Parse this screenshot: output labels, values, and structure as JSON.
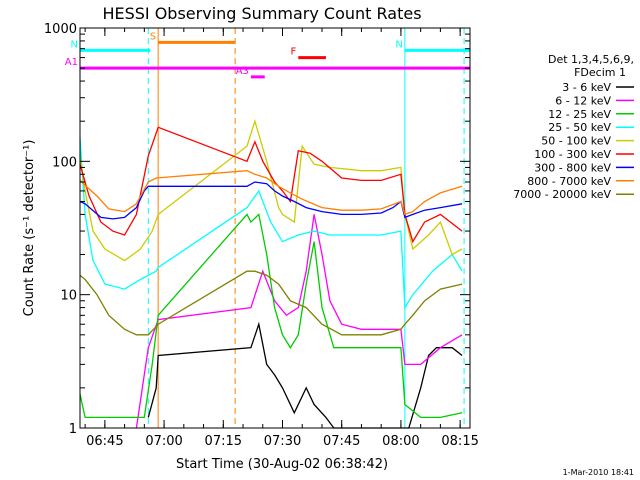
{
  "chart_data": {
    "type": "line",
    "title": "HESSI Observing Summary Count Rates",
    "xlabel": "Start Time (30-Aug-02 06:38:42)",
    "ylabel": "Count Rate (s⁻¹ detector⁻¹)",
    "y_scale": "log",
    "ylim": [
      1,
      1000
    ],
    "xlim": [
      "06:38:42",
      "08:17:30"
    ],
    "x_ticks": [
      "06:45",
      "07:00",
      "07:15",
      "07:30",
      "07:45",
      "08:00",
      "08:15"
    ],
    "y_ticks": [
      "1",
      "10",
      "100",
      "1000"
    ],
    "timestamp": "1-Mar-2010 18:41",
    "legend": {
      "placement": "right",
      "header": [
        "Det 1,3,4,5,6,9,",
        "FDecim 1"
      ]
    },
    "flags": [
      {
        "label": "S",
        "color": "#ff7f00",
        "start": "06:58:30",
        "end": "07:18:00",
        "level": 780
      },
      {
        "label": "N",
        "color": "#00ffff",
        "start": "06:38:42",
        "end": "06:56:30",
        "level": 680
      },
      {
        "label": "N",
        "color": "#00ffff",
        "start": "08:01:00",
        "end": "08:17:30",
        "level": 680
      },
      {
        "label": "A1",
        "color": "#ff00ff",
        "start": "06:38:42",
        "end": "08:17:30",
        "level": 500
      },
      {
        "label": "A3",
        "color": "#ff00ff",
        "start": "07:22:00",
        "end": "07:25:30",
        "level": 430
      },
      {
        "label": "F",
        "color": "#ff0000",
        "start": "07:34:00",
        "end": "07:41:00",
        "level": 600
      }
    ],
    "event_lines": [
      {
        "time": "06:56:00",
        "color": "#00ffff"
      },
      {
        "time": "08:16:00",
        "color": "#00ffff"
      },
      {
        "time": "07:18:00",
        "color": "#ff7f00"
      }
    ],
    "solid_event_lines": [
      {
        "time": "06:58:30",
        "color": "#ff7f00"
      },
      {
        "time": "08:01:00",
        "color": "#00ffff"
      }
    ],
    "series": [
      {
        "name": "3 - 6 keV",
        "color": "#000000",
        "points": [
          [
            "06:56:00",
            1.2
          ],
          [
            "06:58:00",
            2
          ],
          [
            "06:58:30",
            3.5
          ],
          [
            "07:22:00",
            4
          ],
          [
            "07:24:00",
            6
          ],
          [
            "07:26:00",
            3
          ],
          [
            "07:28:00",
            2.5
          ],
          [
            "07:30:00",
            2
          ],
          [
            "07:33:00",
            1.3
          ],
          [
            "07:36:00",
            2
          ],
          [
            "07:38:00",
            1.5
          ],
          [
            "07:41:00",
            1.2
          ],
          [
            "07:43:00",
            1
          ],
          [
            "07:58:00",
            1
          ],
          [
            "08:02:00",
            1
          ],
          [
            "08:05:00",
            2
          ],
          [
            "08:07:00",
            3.5
          ],
          [
            "08:09:00",
            4
          ],
          [
            "08:13:00",
            4
          ],
          [
            "08:15:30",
            3.5
          ]
        ]
      },
      {
        "name": "6 - 12 keV",
        "color": "#ff00ff",
        "points": [
          [
            "06:53:00",
            1
          ],
          [
            "06:56:00",
            4
          ],
          [
            "06:58:30",
            6.5
          ],
          [
            "07:22:00",
            8
          ],
          [
            "07:25:00",
            15
          ],
          [
            "07:28:00",
            9
          ],
          [
            "07:31:00",
            7
          ],
          [
            "07:34:00",
            8
          ],
          [
            "07:36:00",
            15
          ],
          [
            "07:38:00",
            40
          ],
          [
            "07:40:00",
            20
          ],
          [
            "07:42:00",
            9
          ],
          [
            "07:45:00",
            6
          ],
          [
            "07:50:00",
            5.5
          ],
          [
            "07:55:00",
            5.5
          ],
          [
            "08:00:00",
            5.5
          ],
          [
            "08:01:00",
            3
          ],
          [
            "08:02:00",
            3
          ],
          [
            "08:05:00",
            3
          ],
          [
            "08:10:00",
            4
          ],
          [
            "08:15:30",
            5
          ]
        ]
      },
      {
        "name": "12 - 25 keV",
        "color": "#00cc00",
        "points": [
          [
            "06:38:42",
            1.8
          ],
          [
            "06:40:00",
            1.2
          ],
          [
            "06:55:00",
            1.2
          ],
          [
            "06:57:00",
            3
          ],
          [
            "06:58:30",
            7
          ],
          [
            "07:21:00",
            40
          ],
          [
            "07:22:00",
            35
          ],
          [
            "07:24:00",
            40
          ],
          [
            "07:26:00",
            20
          ],
          [
            "07:28:00",
            8
          ],
          [
            "07:30:00",
            5
          ],
          [
            "07:32:00",
            4
          ],
          [
            "07:34:00",
            5
          ],
          [
            "07:36:00",
            12
          ],
          [
            "07:38:00",
            25
          ],
          [
            "07:40:00",
            8
          ],
          [
            "07:43:00",
            4
          ],
          [
            "07:50:00",
            4
          ],
          [
            "08:00:00",
            4
          ],
          [
            "08:01:00",
            1.5
          ],
          [
            "08:05:00",
            1.2
          ],
          [
            "08:10:00",
            1.2
          ],
          [
            "08:15:30",
            1.3
          ]
        ]
      },
      {
        "name": "25 - 50 keV",
        "color": "#00ffff",
        "points": [
          [
            "06:38:42",
            150
          ],
          [
            "06:40:00",
            40
          ],
          [
            "06:42:00",
            18
          ],
          [
            "06:45:00",
            12
          ],
          [
            "06:50:00",
            11
          ],
          [
            "06:54:00",
            13
          ],
          [
            "06:58:00",
            15
          ],
          [
            "06:58:30",
            16
          ],
          [
            "07:21:00",
            45
          ],
          [
            "07:24:00",
            60
          ],
          [
            "07:27:00",
            35
          ],
          [
            "07:30:00",
            25
          ],
          [
            "07:34:00",
            28
          ],
          [
            "07:38:00",
            30
          ],
          [
            "07:42:00",
            28
          ],
          [
            "07:50:00",
            28
          ],
          [
            "07:55:00",
            28
          ],
          [
            "08:00:00",
            30
          ],
          [
            "08:01:00",
            8
          ],
          [
            "08:03:00",
            10
          ],
          [
            "08:08:00",
            15
          ],
          [
            "08:13:00",
            20
          ],
          [
            "08:15:30",
            15
          ]
        ]
      },
      {
        "name": "50 - 100 keV",
        "color": "#cccc00",
        "points": [
          [
            "06:38:42",
            110
          ],
          [
            "06:40:00",
            60
          ],
          [
            "06:42:00",
            30
          ],
          [
            "06:45:00",
            22
          ],
          [
            "06:50:00",
            18
          ],
          [
            "06:54:00",
            22
          ],
          [
            "06:57:00",
            30
          ],
          [
            "06:58:30",
            40
          ],
          [
            "07:21:00",
            130
          ],
          [
            "07:23:00",
            200
          ],
          [
            "07:26:00",
            100
          ],
          [
            "07:29:00",
            45
          ],
          [
            "07:30:00",
            40
          ],
          [
            "07:33:00",
            35
          ],
          [
            "07:35:00",
            130
          ],
          [
            "07:38:00",
            95
          ],
          [
            "07:42:00",
            90
          ],
          [
            "07:50:00",
            85
          ],
          [
            "07:55:00",
            85
          ],
          [
            "08:00:00",
            90
          ],
          [
            "08:01:00",
            40
          ],
          [
            "08:03:00",
            22
          ],
          [
            "08:07:00",
            28
          ],
          [
            "08:10:00",
            35
          ],
          [
            "08:13:00",
            20
          ],
          [
            "08:15:30",
            22
          ]
        ]
      },
      {
        "name": "100 - 300 keV",
        "color": "#ff0000",
        "points": [
          [
            "06:38:42",
            95
          ],
          [
            "06:41:00",
            55
          ],
          [
            "06:44:00",
            35
          ],
          [
            "06:47:00",
            30
          ],
          [
            "06:50:00",
            28
          ],
          [
            "06:53:00",
            40
          ],
          [
            "06:56:00",
            110
          ],
          [
            "06:58:30",
            180
          ],
          [
            "07:21:00",
            100
          ],
          [
            "07:23:00",
            140
          ],
          [
            "07:25:00",
            100
          ],
          [
            "07:28:00",
            70
          ],
          [
            "07:30:00",
            60
          ],
          [
            "07:32:00",
            50
          ],
          [
            "07:34:00",
            120
          ],
          [
            "07:37:00",
            115
          ],
          [
            "07:40:00",
            100
          ],
          [
            "07:45:00",
            75
          ],
          [
            "07:50:00",
            72
          ],
          [
            "07:55:00",
            72
          ],
          [
            "08:00:00",
            80
          ],
          [
            "08:01:00",
            40
          ],
          [
            "08:03:00",
            25
          ],
          [
            "08:06:00",
            35
          ],
          [
            "08:10:00",
            40
          ],
          [
            "08:15:30",
            30
          ]
        ]
      },
      {
        "name": "300 - 800 keV",
        "color": "#0000ff",
        "points": [
          [
            "06:38:42",
            50
          ],
          [
            "06:40:00",
            48
          ],
          [
            "06:44:00",
            38
          ],
          [
            "06:47:00",
            37
          ],
          [
            "06:50:00",
            38
          ],
          [
            "06:53:00",
            45
          ],
          [
            "06:55:00",
            60
          ],
          [
            "06:56:00",
            65
          ],
          [
            "07:21:00",
            65
          ],
          [
            "07:23:00",
            70
          ],
          [
            "07:26:00",
            68
          ],
          [
            "07:28:00",
            60
          ],
          [
            "07:30:00",
            55
          ],
          [
            "07:33:00",
            50
          ],
          [
            "07:36:00",
            45
          ],
          [
            "07:40:00",
            42
          ],
          [
            "07:45:00",
            40
          ],
          [
            "07:50:00",
            40
          ],
          [
            "07:55:00",
            41
          ],
          [
            "07:58:00",
            45
          ],
          [
            "08:00:00",
            50
          ],
          [
            "08:01:00",
            38
          ],
          [
            "08:03:00",
            40
          ],
          [
            "08:06:00",
            43
          ],
          [
            "08:10:00",
            45
          ],
          [
            "08:15:30",
            48
          ]
        ]
      },
      {
        "name": "800 - 7000 keV",
        "color": "#ff7f00",
        "points": [
          [
            "06:38:42",
            72
          ],
          [
            "06:40:00",
            66
          ],
          [
            "06:43:00",
            55
          ],
          [
            "06:46:00",
            44
          ],
          [
            "06:50:00",
            42
          ],
          [
            "06:53:00",
            48
          ],
          [
            "06:56:00",
            70
          ],
          [
            "06:58:00",
            75
          ],
          [
            "07:21:00",
            85
          ],
          [
            "07:23:00",
            80
          ],
          [
            "07:26:00",
            75
          ],
          [
            "07:29:00",
            65
          ],
          [
            "07:32:00",
            58
          ],
          [
            "07:35:00",
            52
          ],
          [
            "07:40:00",
            45
          ],
          [
            "07:45:00",
            43
          ],
          [
            "07:50:00",
            43
          ],
          [
            "07:55:00",
            44
          ],
          [
            "08:00:00",
            50
          ],
          [
            "08:01:00",
            40
          ],
          [
            "08:03:00",
            42
          ],
          [
            "08:06:00",
            50
          ],
          [
            "08:10:00",
            58
          ],
          [
            "08:15:30",
            65
          ]
        ]
      },
      {
        "name": "7000 - 20000 keV",
        "color": "#808000",
        "points": [
          [
            "06:38:42",
            14
          ],
          [
            "06:40:00",
            13
          ],
          [
            "06:43:00",
            10
          ],
          [
            "06:46:00",
            7
          ],
          [
            "06:50:00",
            5.5
          ],
          [
            "06:53:00",
            5
          ],
          [
            "06:56:00",
            5
          ],
          [
            "06:58:30",
            6
          ],
          [
            "07:21:00",
            15
          ],
          [
            "07:23:00",
            15
          ],
          [
            "07:26:00",
            14
          ],
          [
            "07:29:00",
            12
          ],
          [
            "07:32:00",
            9
          ],
          [
            "07:36:00",
            8
          ],
          [
            "07:40:00",
            6
          ],
          [
            "07:45:00",
            5
          ],
          [
            "07:50:00",
            5
          ],
          [
            "07:55:00",
            5
          ],
          [
            "08:00:00",
            5.5
          ],
          [
            "08:01:00",
            6
          ],
          [
            "08:03:00",
            7
          ],
          [
            "08:06:00",
            9
          ],
          [
            "08:10:00",
            11
          ],
          [
            "08:15:30",
            12
          ]
        ]
      }
    ]
  }
}
